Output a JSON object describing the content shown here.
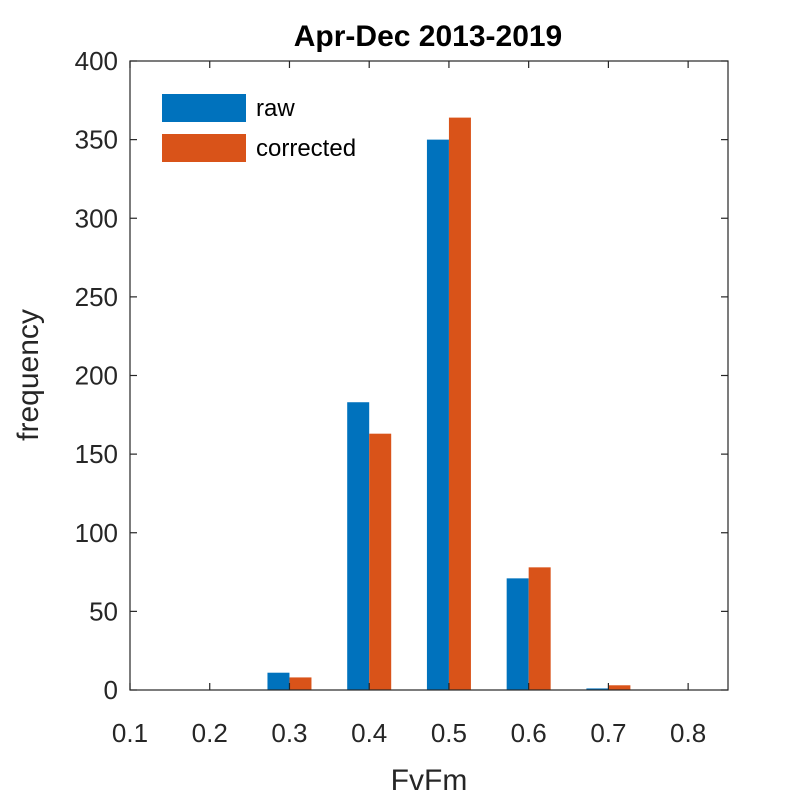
{
  "chart_data": {
    "type": "bar",
    "title": "Apr-Dec 2013-2019",
    "xlabel": "FvFm",
    "ylabel": "frequency",
    "xlim": [
      0.1,
      0.85
    ],
    "ylim": [
      0,
      400
    ],
    "xticks": [
      "0.1",
      "0.2",
      "0.3",
      "0.4",
      "0.5",
      "0.6",
      "0.7",
      "0.8"
    ],
    "yticks": [
      "0",
      "50",
      "100",
      "150",
      "200",
      "250",
      "300",
      "350",
      "400"
    ],
    "categories": [
      0.3,
      0.4,
      0.5,
      0.6,
      0.7
    ],
    "series": [
      {
        "name": "raw",
        "color": "#0072BD",
        "values": [
          11,
          183,
          350,
          71,
          1
        ]
      },
      {
        "name": "corrected",
        "color": "#D95319",
        "values": [
          8,
          163,
          364,
          78,
          3
        ]
      }
    ],
    "grid": false,
    "legend_position": "top-left"
  }
}
